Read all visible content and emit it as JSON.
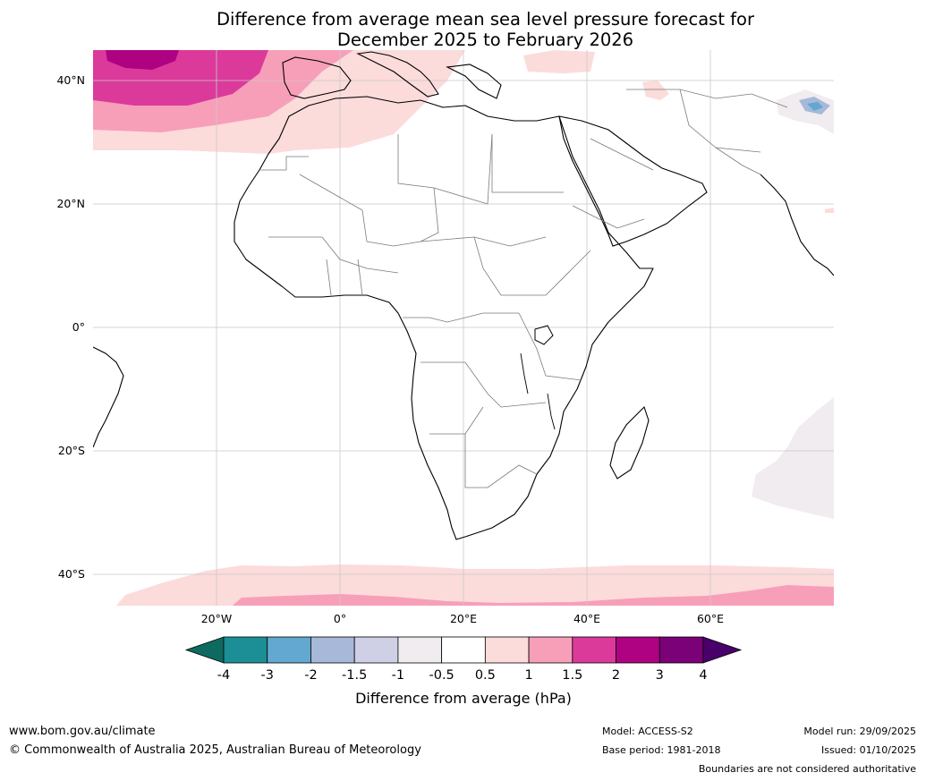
{
  "title": {
    "line1": "Difference from average mean sea level pressure forecast for",
    "line2": "December 2025 to February 2026"
  },
  "map": {
    "lat_labels": [
      "40°N",
      "20°N",
      "0°",
      "20°S",
      "40°S"
    ],
    "lon_labels": [
      "20°W",
      "0°",
      "20°E",
      "40°E",
      "60°E"
    ]
  },
  "colorbar": {
    "tick_labels": [
      "-4",
      "-3",
      "-2",
      "-1.5",
      "-1",
      "-0.5",
      "0.5",
      "1",
      "1.5",
      "2",
      "3",
      "4"
    ],
    "colors": [
      "#1b8f95",
      "#62a8d0",
      "#a7b8d9",
      "#cfd0e5",
      "#f0ecf0",
      "#ffffff",
      "#fcdbdb",
      "#f79fb9",
      "#dc3a9b",
      "#ae0282",
      "#7a0177"
    ],
    "under_color": "#0e6a60",
    "over_color": "#49006a",
    "label": "Difference from average (hPa)"
  },
  "footer": {
    "website": "www.bom.gov.au/climate",
    "copyright": "© Commonwealth of Australia 2025, Australian Bureau of Meteorology",
    "model": "Model: ACCESS-S2",
    "base_period": "Base period: 1981-2018",
    "model_run": "Model run: 29/09/2025",
    "issued": "Issued: 01/10/2025",
    "disclaimer": "Boundaries are not considered authoritative"
  }
}
